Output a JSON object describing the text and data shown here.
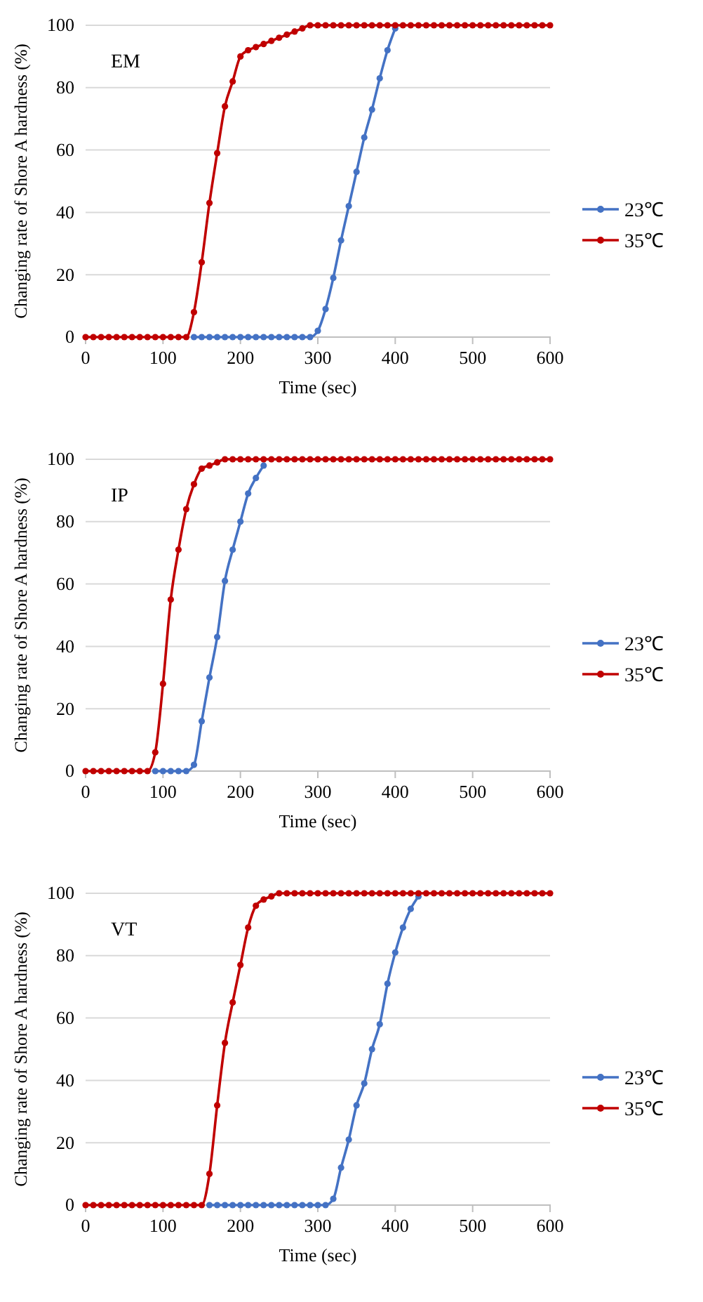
{
  "chart_data": [
    {
      "type": "line",
      "title": "EM",
      "xlabel": "Time (sec)",
      "ylabel": "Changing rate of Shore A hardness (%)",
      "xlim": [
        0,
        600
      ],
      "xticks": [
        0,
        100,
        200,
        300,
        400,
        500,
        600
      ],
      "ylim": [
        0,
        100
      ],
      "yticks": [
        0,
        20,
        40,
        60,
        80,
        100
      ],
      "grid": "y",
      "legend": "right",
      "marker": "circle",
      "line_style": "solid",
      "series": [
        {
          "name": "23℃",
          "color": "#4472c4",
          "x": [
            140,
            150,
            160,
            170,
            180,
            190,
            200,
            210,
            220,
            230,
            240,
            250,
            260,
            270,
            280,
            290,
            300,
            310,
            320,
            330,
            340,
            350,
            360,
            370,
            380,
            390,
            400
          ],
          "values": [
            0,
            0,
            0,
            0,
            0,
            0,
            0,
            0,
            0,
            0,
            0,
            0,
            0,
            0,
            0,
            0,
            2,
            9,
            19,
            31,
            42,
            53,
            64,
            73,
            83,
            92,
            99
          ]
        },
        {
          "name": "35℃",
          "color": "#c00000",
          "x": [
            0,
            10,
            20,
            30,
            40,
            50,
            60,
            70,
            80,
            90,
            100,
            110,
            120,
            130,
            140,
            150,
            160,
            170,
            180,
            190,
            200,
            210,
            220,
            230,
            240,
            250,
            260,
            270,
            280,
            290,
            300,
            310,
            320,
            330,
            340,
            350,
            360,
            370,
            380,
            390,
            400,
            410,
            420,
            430,
            440,
            450,
            460,
            470,
            480,
            490,
            500,
            510,
            520,
            530,
            540,
            550,
            560,
            570,
            580,
            590,
            600
          ],
          "values": [
            0,
            0,
            0,
            0,
            0,
            0,
            0,
            0,
            0,
            0,
            0,
            0,
            0,
            0,
            8,
            24,
            43,
            59,
            74,
            82,
            90,
            92,
            93,
            94,
            95,
            96,
            97,
            98,
            99,
            100,
            100,
            100,
            100,
            100,
            100,
            100,
            100,
            100,
            100,
            100,
            100,
            100,
            100,
            100,
            100,
            100,
            100,
            100,
            100,
            100,
            100,
            100,
            100,
            100,
            100,
            100,
            100,
            100,
            100,
            100,
            100
          ]
        }
      ]
    },
    {
      "type": "line",
      "title": "IP",
      "xlabel": "Time (sec)",
      "ylabel": "Changing rate of Shore A hardness (%)",
      "xlim": [
        0,
        600
      ],
      "xticks": [
        0,
        100,
        200,
        300,
        400,
        500,
        600
      ],
      "ylim": [
        0,
        100
      ],
      "yticks": [
        0,
        20,
        40,
        60,
        80,
        100
      ],
      "grid": "y",
      "legend": "right",
      "marker": "circle",
      "line_style": "solid",
      "series": [
        {
          "name": "23℃",
          "color": "#4472c4",
          "x": [
            90,
            100,
            110,
            120,
            130,
            140,
            150,
            160,
            170,
            180,
            190,
            200,
            210,
            220,
            230
          ],
          "values": [
            0,
            0,
            0,
            0,
            0,
            2,
            16,
            30,
            43,
            61,
            71,
            80,
            89,
            94,
            98
          ]
        },
        {
          "name": "35℃",
          "color": "#c00000",
          "x": [
            0,
            10,
            20,
            30,
            40,
            50,
            60,
            70,
            80,
            90,
            100,
            110,
            120,
            130,
            140,
            150,
            160,
            170,
            180,
            190,
            200,
            210,
            220,
            230,
            240,
            250,
            260,
            270,
            280,
            290,
            300,
            310,
            320,
            330,
            340,
            350,
            360,
            370,
            380,
            390,
            400,
            410,
            420,
            430,
            440,
            450,
            460,
            470,
            480,
            490,
            500,
            510,
            520,
            530,
            540,
            550,
            560,
            570,
            580,
            590,
            600
          ],
          "values": [
            0,
            0,
            0,
            0,
            0,
            0,
            0,
            0,
            0,
            6,
            28,
            55,
            71,
            84,
            92,
            97,
            98,
            99,
            100,
            100,
            100,
            100,
            100,
            100,
            100,
            100,
            100,
            100,
            100,
            100,
            100,
            100,
            100,
            100,
            100,
            100,
            100,
            100,
            100,
            100,
            100,
            100,
            100,
            100,
            100,
            100,
            100,
            100,
            100,
            100,
            100,
            100,
            100,
            100,
            100,
            100,
            100,
            100,
            100,
            100,
            100
          ]
        }
      ]
    },
    {
      "type": "line",
      "title": "VT",
      "xlabel": "Time (sec)",
      "ylabel": "Changing rate of Shore A hardness (%)",
      "xlim": [
        0,
        600
      ],
      "xticks": [
        0,
        100,
        200,
        300,
        400,
        500,
        600
      ],
      "ylim": [
        0,
        100
      ],
      "yticks": [
        0,
        20,
        40,
        60,
        80,
        100
      ],
      "grid": "y",
      "legend": "right",
      "marker": "circle",
      "line_style": "solid",
      "series": [
        {
          "name": "23℃",
          "color": "#4472c4",
          "x": [
            160,
            170,
            180,
            190,
            200,
            210,
            220,
            230,
            240,
            250,
            260,
            270,
            280,
            290,
            300,
            310,
            320,
            330,
            340,
            350,
            360,
            370,
            380,
            390,
            400,
            410,
            420,
            430
          ],
          "values": [
            0,
            0,
            0,
            0,
            0,
            0,
            0,
            0,
            0,
            0,
            0,
            0,
            0,
            0,
            0,
            0,
            2,
            12,
            21,
            32,
            39,
            50,
            58,
            71,
            81,
            89,
            95,
            99
          ]
        },
        {
          "name": "35℃",
          "color": "#c00000",
          "x": [
            0,
            10,
            20,
            30,
            40,
            50,
            60,
            70,
            80,
            90,
            100,
            110,
            120,
            130,
            140,
            150,
            160,
            170,
            180,
            190,
            200,
            210,
            220,
            230,
            240,
            250,
            260,
            270,
            280,
            290,
            300,
            310,
            320,
            330,
            340,
            350,
            360,
            370,
            380,
            390,
            400,
            410,
            420,
            430,
            440,
            450,
            460,
            470,
            480,
            490,
            500,
            510,
            520,
            530,
            540,
            550,
            560,
            570,
            580,
            590,
            600
          ],
          "values": [
            0,
            0,
            0,
            0,
            0,
            0,
            0,
            0,
            0,
            0,
            0,
            0,
            0,
            0,
            0,
            0,
            10,
            32,
            52,
            65,
            77,
            89,
            96,
            98,
            99,
            100,
            100,
            100,
            100,
            100,
            100,
            100,
            100,
            100,
            100,
            100,
            100,
            100,
            100,
            100,
            100,
            100,
            100,
            100,
            100,
            100,
            100,
            100,
            100,
            100,
            100,
            100,
            100,
            100,
            100,
            100,
            100,
            100,
            100,
            100,
            100
          ]
        }
      ]
    }
  ]
}
